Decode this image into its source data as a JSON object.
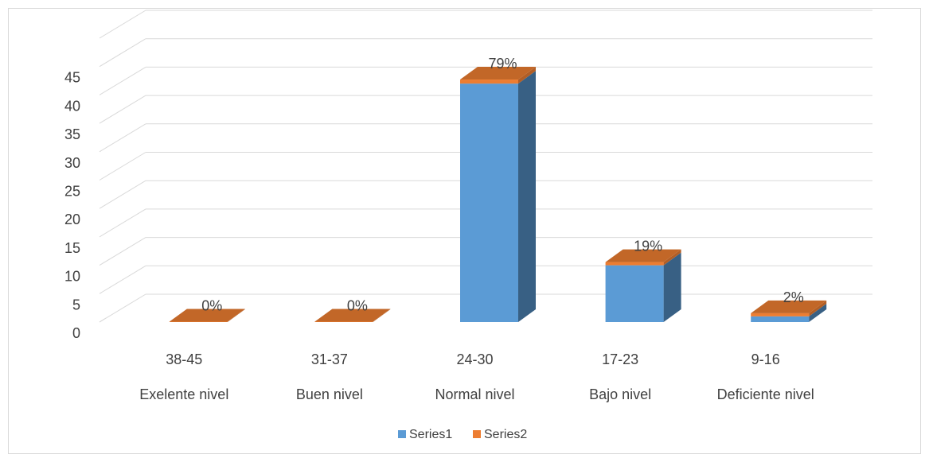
{
  "chart_data": {
    "type": "bar",
    "style": "3d-stacked-column",
    "categories": [
      "38-45",
      "31-37",
      "24-30",
      "17-23",
      "9-16"
    ],
    "group_labels": [
      "Exelente nivel",
      "Buen nivel",
      "Normal nivel",
      "Bajo nivel",
      "Deficiente nivel"
    ],
    "series": [
      {
        "name": "Series1",
        "values": [
          0,
          0,
          42,
          10,
          1
        ],
        "color": "#5B9BD5"
      },
      {
        "name": "Series2",
        "values": [
          0,
          0,
          0.79,
          0.19,
          0.02
        ],
        "color": "#ED7D31"
      }
    ],
    "data_labels": [
      "0%",
      "0%",
      "79%",
      "19%",
      "2%"
    ],
    "y_ticks": [
      0,
      5,
      10,
      15,
      20,
      25,
      30,
      35,
      40,
      45
    ],
    "ylim": [
      0,
      50
    ],
    "grid": true,
    "legend_position": "bottom",
    "title": "",
    "xlabel": "",
    "ylabel": ""
  }
}
